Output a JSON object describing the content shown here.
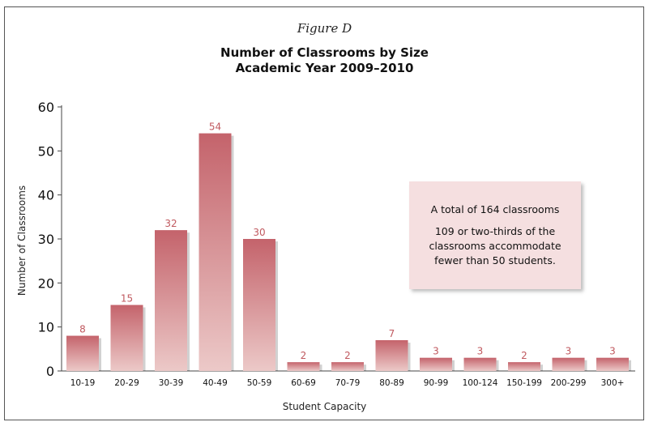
{
  "figure_label": "Figure D",
  "chart_data": {
    "type": "bar",
    "title": "Number of Classrooms by Size",
    "subtitle": "Academic Year 2009–2010",
    "xlabel": "Student Capacity",
    "ylabel": "Number of Classrooms",
    "ylim": [
      0,
      60
    ],
    "yticks": [
      0,
      10,
      20,
      30,
      40,
      50,
      60
    ],
    "categories": [
      "10-19",
      "20-29",
      "30-39",
      "40-49",
      "50-59",
      "60-69",
      "70-79",
      "80-89",
      "90-99",
      "100-124",
      "150-199",
      "200-299",
      "300+"
    ],
    "values": [
      8,
      15,
      32,
      54,
      30,
      2,
      2,
      7,
      3,
      3,
      2,
      3,
      3
    ],
    "data_labels": true,
    "grid": false,
    "bar_color_top": "#c4636b",
    "bar_color_bottom": "#ecc9c8",
    "label_color": "#c0595f",
    "annotation": {
      "line1": "A total of 164 classrooms",
      "line2": "109 or two-thirds of the classrooms accommodate fewer than 50 students.",
      "background": "#f5dfe0"
    }
  }
}
